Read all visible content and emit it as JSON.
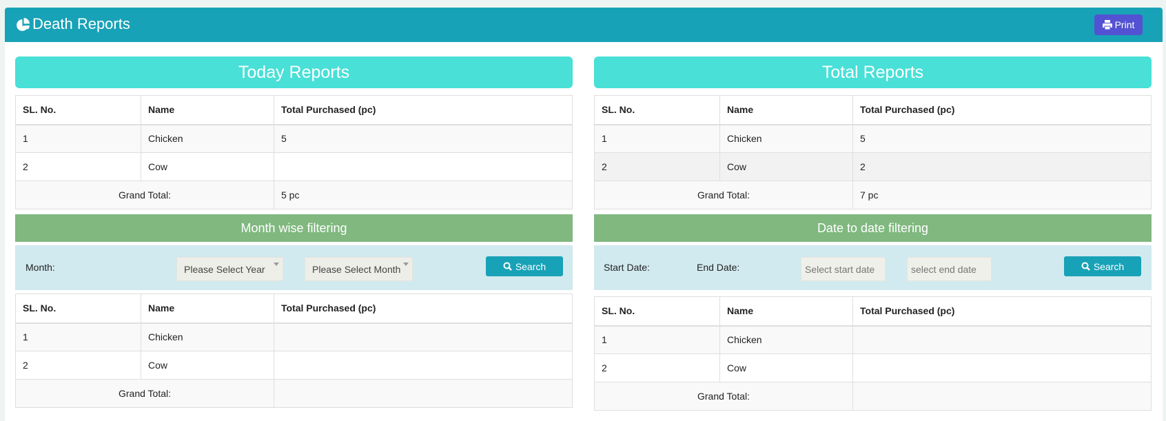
{
  "header": {
    "title": "Death Reports",
    "print_label": "Print",
    "color": "#18a2b7"
  },
  "today": {
    "title": "Today Reports",
    "columns": [
      "SL. No.",
      "Name",
      "Total Purchased (pc)"
    ],
    "rows": [
      [
        "1",
        "Chicken",
        "5"
      ],
      [
        "2",
        "Cow",
        ""
      ]
    ],
    "grand_total_label": "Grand Total:",
    "grand_total": "5 pc"
  },
  "total": {
    "title": "Total Reports",
    "columns": [
      "SL. No.",
      "Name",
      "Total Purchased (pc)"
    ],
    "rows": [
      [
        "1",
        "Chicken",
        "5"
      ],
      [
        "2",
        "Cow",
        "2"
      ]
    ],
    "grand_total_label": "Grand Total:",
    "grand_total": "7 pc"
  },
  "month_filter": {
    "title": "Month wise filtering",
    "month_label": "Month:",
    "year_select": "Please Select Year",
    "month_select": "Please Select Month",
    "search_label": "Search",
    "columns": [
      "SL. No.",
      "Name",
      "Total Purchased (pc)"
    ],
    "rows": [
      [
        "1",
        "Chicken",
        ""
      ],
      [
        "2",
        "Cow",
        ""
      ]
    ],
    "grand_total_label": "Grand Total:",
    "grand_total": ""
  },
  "date_filter": {
    "title": "Date to date filtering",
    "start_label": "Start Date:",
    "end_label": "End Date:",
    "start_placeholder": "Select start date",
    "end_placeholder": "select end date",
    "search_label": "Search",
    "columns": [
      "SL. No.",
      "Name",
      "Total Purchased (pc)"
    ],
    "rows": [
      [
        "1",
        "Chicken",
        ""
      ],
      [
        "2",
        "Cow",
        ""
      ]
    ],
    "grand_total_label": "Grand Total:",
    "grand_total": ""
  }
}
